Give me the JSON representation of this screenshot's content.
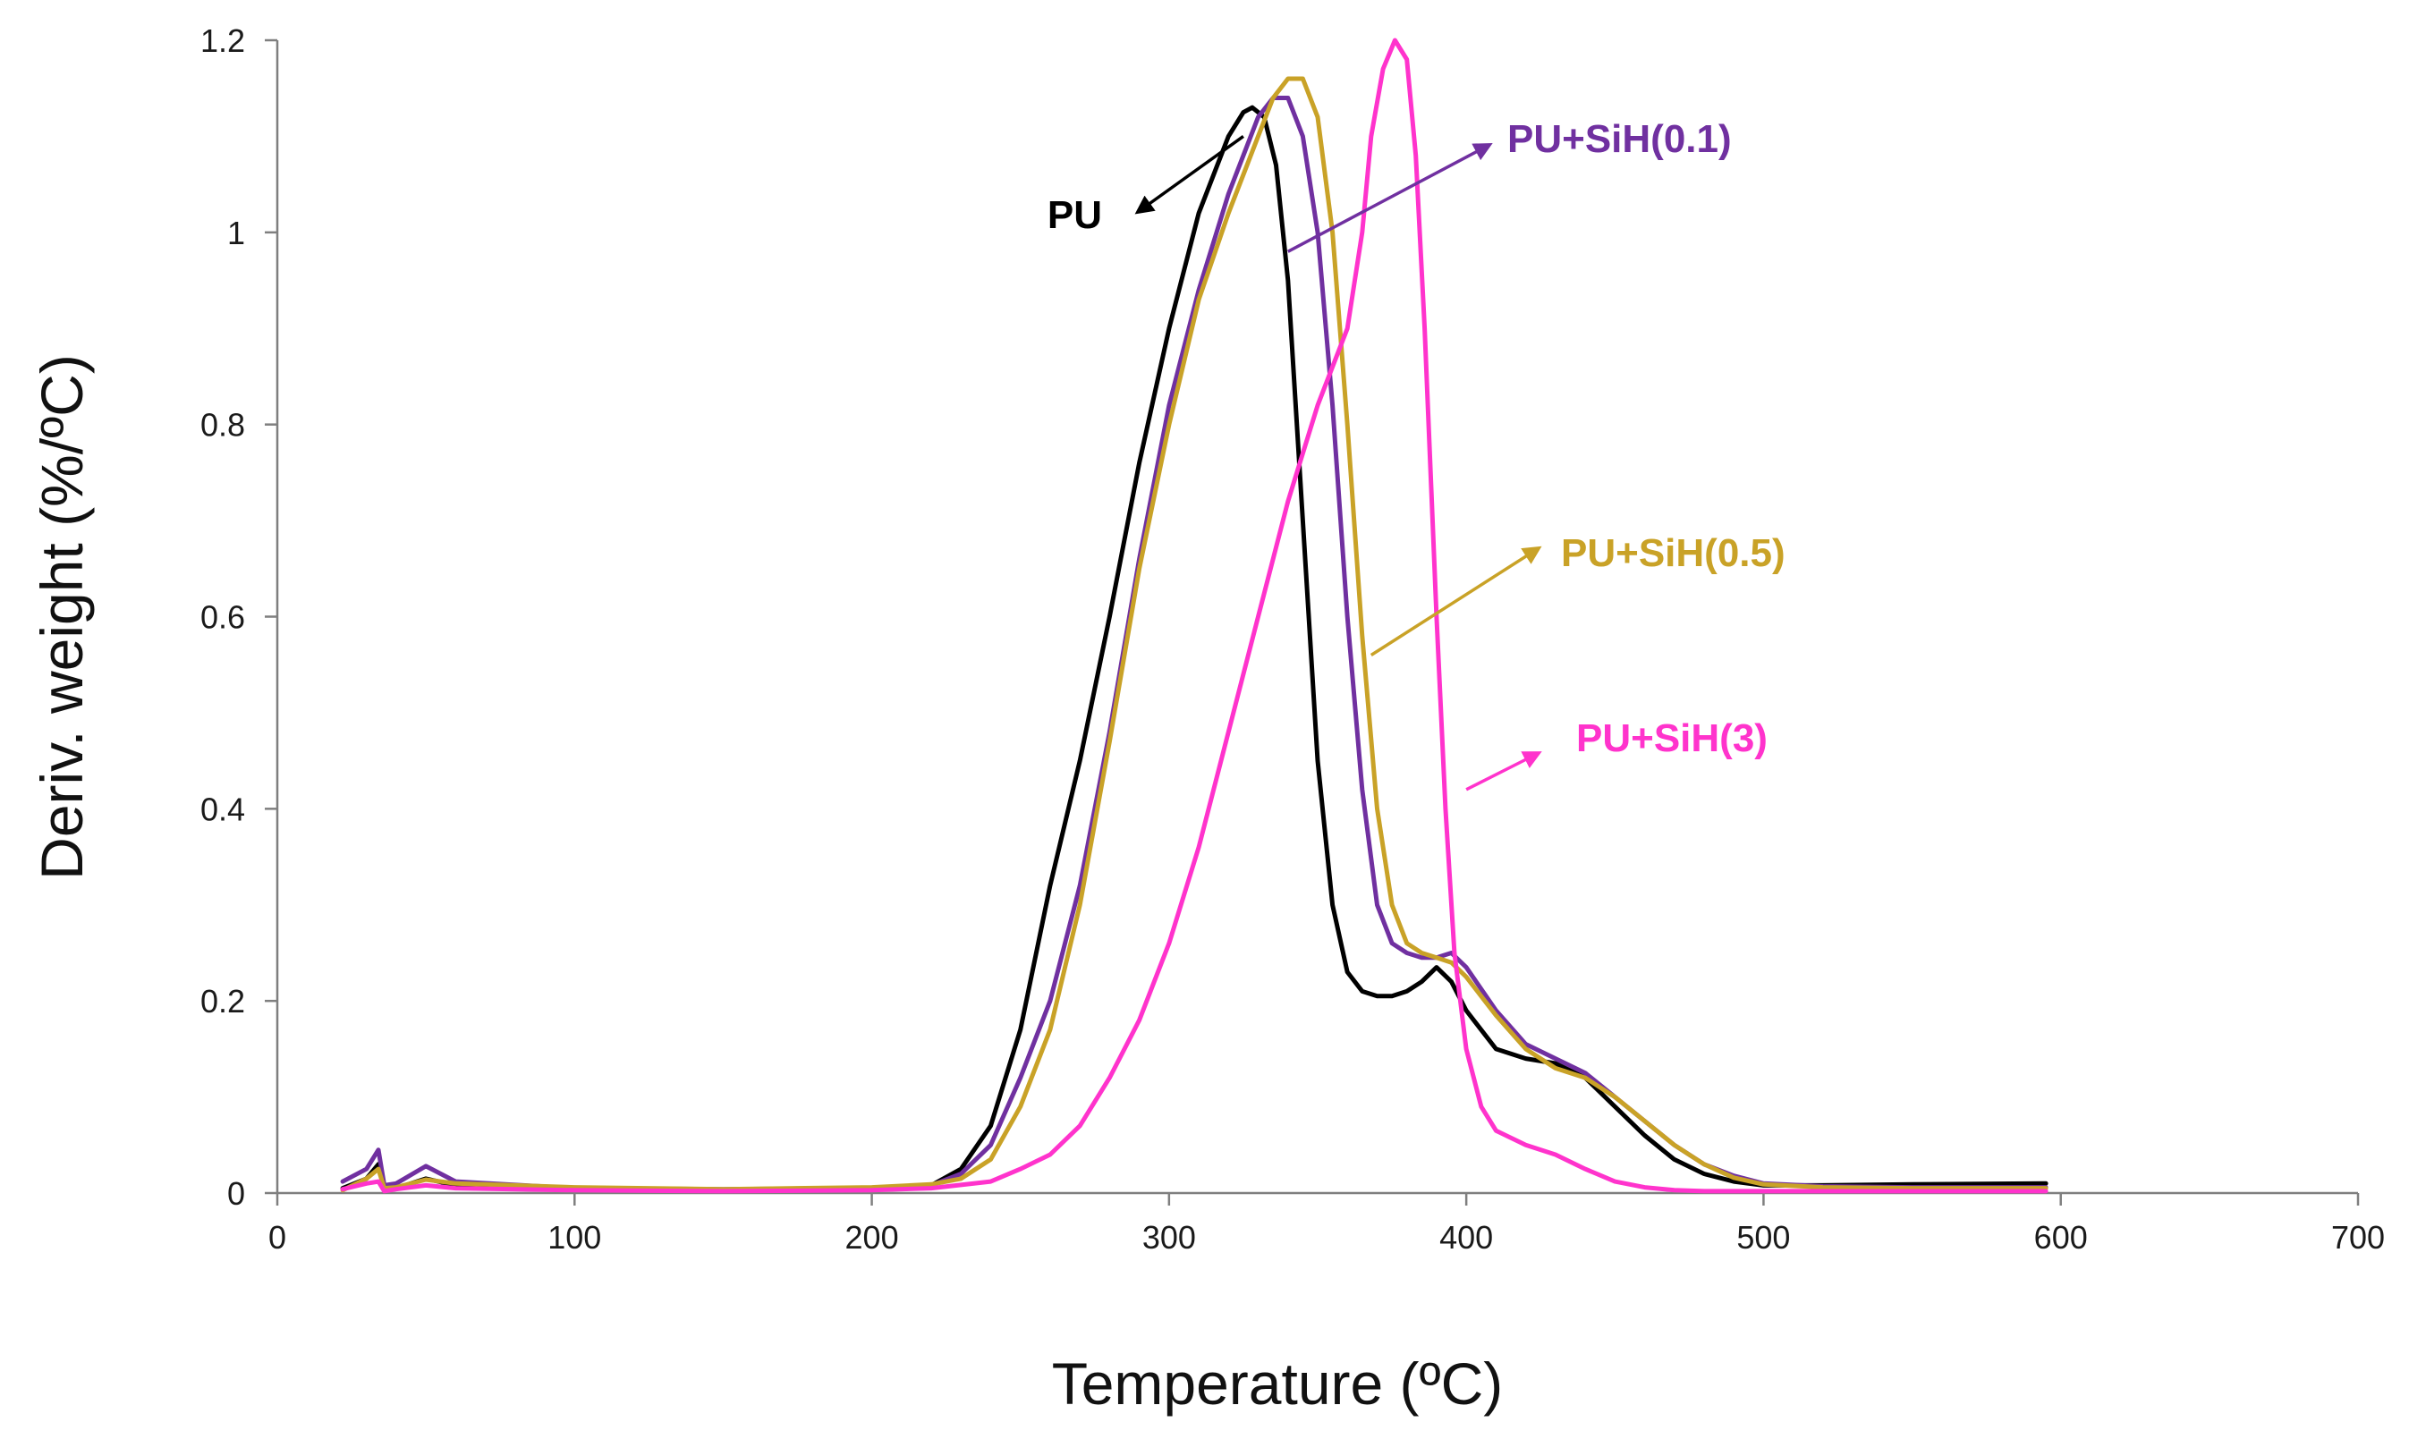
{
  "chart_data": {
    "type": "line",
    "xlabel": "Temperature (ºC)",
    "ylabel": "Deriv. weight (%/ºC)",
    "xlim": [
      0,
      700
    ],
    "ylim": [
      0,
      1.2
    ],
    "xticks": [
      0,
      100,
      200,
      300,
      400,
      500,
      600,
      700
    ],
    "yticks": [
      0,
      0.2,
      0.4,
      0.6,
      0.8,
      1,
      1.2
    ],
    "xtick_labels": [
      "0",
      "100",
      "200",
      "300",
      "400",
      "500",
      "600",
      "700"
    ],
    "ytick_labels": [
      "0",
      "0.2",
      "0.4",
      "0.6",
      "0.8",
      "1",
      "1.2"
    ],
    "series": [
      {
        "name": "PU",
        "color": "#000000",
        "label_anchor": [
          325,
          1.1
        ],
        "x": [
          22,
          30,
          34,
          36,
          40,
          50,
          60,
          100,
          150,
          200,
          220,
          230,
          240,
          250,
          260,
          270,
          280,
          290,
          300,
          310,
          320,
          325,
          328,
          332,
          336,
          340,
          345,
          350,
          355,
          360,
          365,
          370,
          375,
          380,
          385,
          390,
          395,
          400,
          410,
          420,
          430,
          440,
          450,
          460,
          470,
          480,
          490,
          500,
          520,
          550,
          595
        ],
        "y": [
          0.005,
          0.015,
          0.03,
          0.003,
          0.005,
          0.015,
          0.008,
          0.004,
          0.003,
          0.004,
          0.008,
          0.025,
          0.07,
          0.17,
          0.32,
          0.45,
          0.6,
          0.76,
          0.9,
          1.02,
          1.1,
          1.125,
          1.13,
          1.12,
          1.07,
          0.95,
          0.7,
          0.45,
          0.3,
          0.23,
          0.21,
          0.205,
          0.205,
          0.21,
          0.22,
          0.235,
          0.22,
          0.19,
          0.15,
          0.14,
          0.135,
          0.12,
          0.09,
          0.06,
          0.035,
          0.02,
          0.012,
          0.008,
          0.008,
          0.009,
          0.01
        ]
      },
      {
        "name": "PU+SiH(0.1)",
        "color": "#7030A0",
        "label_anchor": [
          340,
          0.98
        ],
        "x": [
          22,
          30,
          34,
          36,
          40,
          50,
          60,
          100,
          150,
          200,
          220,
          230,
          240,
          250,
          260,
          270,
          280,
          290,
          300,
          310,
          320,
          330,
          335,
          340,
          345,
          350,
          355,
          360,
          365,
          370,
          375,
          380,
          385,
          390,
          395,
          400,
          410,
          420,
          430,
          440,
          450,
          460,
          470,
          480,
          490,
          500,
          520,
          550,
          595
        ],
        "y": [
          0.012,
          0.025,
          0.045,
          0.008,
          0.01,
          0.028,
          0.012,
          0.005,
          0.004,
          0.005,
          0.008,
          0.02,
          0.05,
          0.12,
          0.2,
          0.32,
          0.48,
          0.66,
          0.82,
          0.94,
          1.04,
          1.12,
          1.14,
          1.14,
          1.1,
          1.0,
          0.82,
          0.6,
          0.42,
          0.3,
          0.26,
          0.25,
          0.245,
          0.245,
          0.25,
          0.235,
          0.19,
          0.155,
          0.14,
          0.125,
          0.1,
          0.075,
          0.05,
          0.03,
          0.018,
          0.01,
          0.007,
          0.006,
          0.006
        ]
      },
      {
        "name": "PU+SiH(0.5)",
        "color": "#C9A227",
        "label_anchor": [
          368,
          0.56
        ],
        "x": [
          22,
          30,
          34,
          36,
          40,
          50,
          60,
          100,
          150,
          200,
          220,
          230,
          240,
          250,
          260,
          270,
          280,
          290,
          300,
          310,
          320,
          330,
          335,
          340,
          345,
          350,
          355,
          360,
          365,
          370,
          375,
          380,
          385,
          390,
          395,
          400,
          410,
          420,
          430,
          440,
          450,
          460,
          470,
          480,
          490,
          500,
          520,
          550,
          595
        ],
        "y": [
          0.003,
          0.015,
          0.025,
          0.005,
          0.006,
          0.014,
          0.01,
          0.006,
          0.004,
          0.006,
          0.009,
          0.015,
          0.035,
          0.09,
          0.17,
          0.3,
          0.47,
          0.65,
          0.8,
          0.93,
          1.02,
          1.1,
          1.14,
          1.16,
          1.16,
          1.12,
          1.0,
          0.8,
          0.58,
          0.4,
          0.3,
          0.26,
          0.25,
          0.245,
          0.24,
          0.225,
          0.185,
          0.15,
          0.13,
          0.12,
          0.1,
          0.075,
          0.05,
          0.03,
          0.016,
          0.009,
          0.006,
          0.005,
          0.005
        ]
      },
      {
        "name": "PU+SiH(3)",
        "color": "#FF33CC",
        "label_anchor": [
          400,
          0.42
        ],
        "x": [
          22,
          30,
          34,
          36,
          40,
          50,
          60,
          100,
          150,
          200,
          220,
          240,
          250,
          260,
          270,
          280,
          290,
          300,
          310,
          320,
          330,
          340,
          350,
          355,
          360,
          365,
          368,
          372,
          376,
          380,
          383,
          386,
          390,
          393,
          396,
          400,
          405,
          410,
          420,
          430,
          440,
          450,
          460,
          470,
          480,
          490,
          500,
          520,
          550,
          595
        ],
        "y": [
          0.004,
          0.01,
          0.012,
          0.002,
          0.004,
          0.008,
          0.005,
          0.003,
          0.002,
          0.003,
          0.005,
          0.012,
          0.025,
          0.04,
          0.07,
          0.12,
          0.18,
          0.26,
          0.36,
          0.48,
          0.6,
          0.72,
          0.82,
          0.86,
          0.9,
          1.0,
          1.1,
          1.17,
          1.2,
          1.18,
          1.08,
          0.9,
          0.6,
          0.4,
          0.25,
          0.15,
          0.09,
          0.065,
          0.05,
          0.04,
          0.025,
          0.012,
          0.006,
          0.003,
          0.002,
          0.002,
          0.002,
          0.002,
          0.002,
          0.002
        ]
      }
    ],
    "legend": "inline arrow labels"
  }
}
